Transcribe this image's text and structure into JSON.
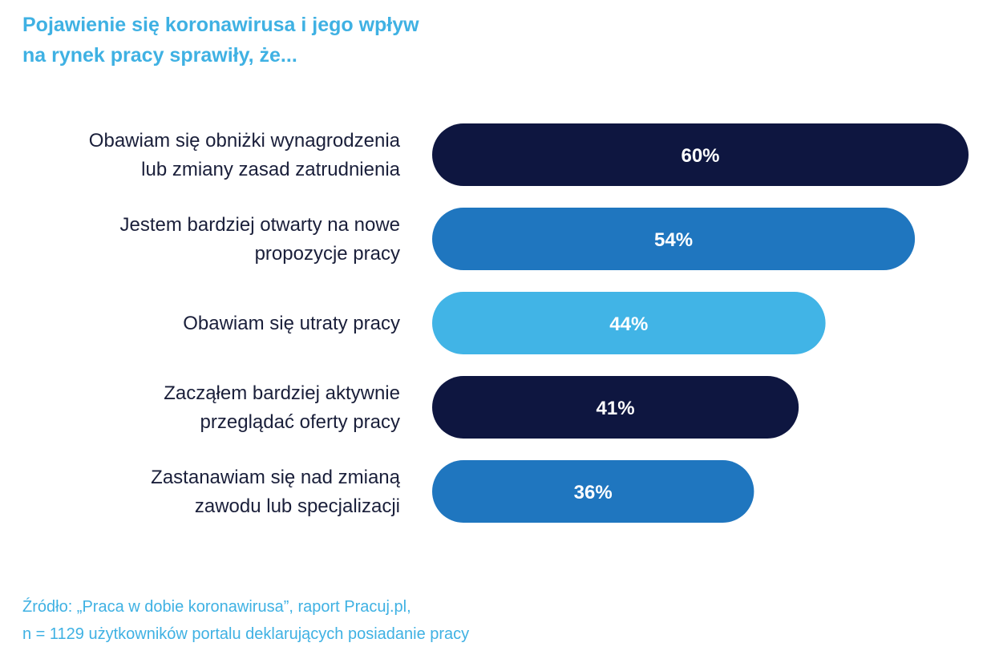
{
  "title_lines": [
    "Pojawienie się koronawirusa i jego wpływ",
    "na rynek pracy sprawiły, że..."
  ],
  "source_lines": [
    "Źródło: „Praca w dobie koronawirusa”, raport Pracuj.pl,",
    "n = 1129 użytkowników portalu deklarujących posiadanie pracy"
  ],
  "chart_data": {
    "type": "bar",
    "orientation": "horizontal",
    "title": "Pojawienie się koronawirusa i jego wpływ na rynek pracy sprawiły, że...",
    "unit": "%",
    "xlim": [
      0,
      60
    ],
    "grid": false,
    "categories": [
      [
        "Obawiam się obniżki wynagrodzenia",
        "lub zmiany zasad zatrudnienia"
      ],
      [
        "Jestem bardziej otwarty na nowe",
        "propozycje pracy"
      ],
      [
        "Obawiam się utraty pracy"
      ],
      [
        "Zacząłem bardziej aktywnie",
        "przeglądać oferty pracy"
      ],
      [
        "Zastanawiam się nad zmianą",
        "zawodu lub specjalizacji"
      ]
    ],
    "values": [
      60,
      54,
      44,
      41,
      36
    ],
    "value_labels": [
      "60%",
      "54%",
      "44%",
      "41%",
      "36%"
    ],
    "bar_colors": [
      "#0e1640",
      "#1f76bf",
      "#41b4e6",
      "#0e1640",
      "#1f76bf"
    ]
  }
}
